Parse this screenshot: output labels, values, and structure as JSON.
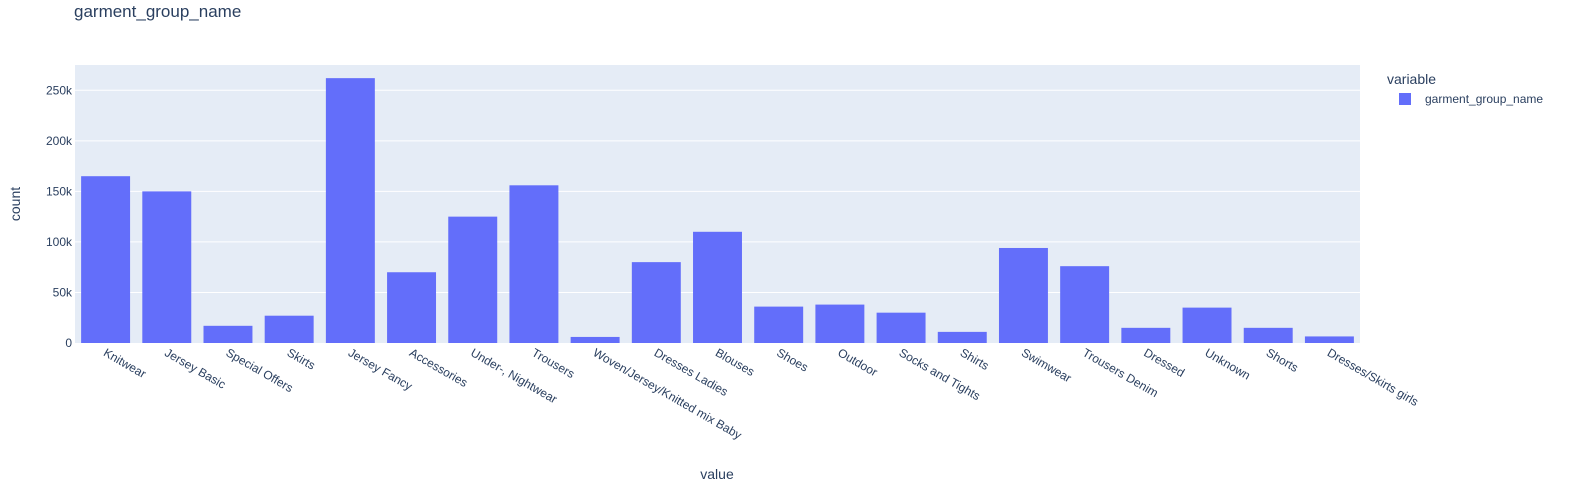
{
  "chart_data": {
    "type": "bar",
    "title": "garment_group_name",
    "xlabel": "value",
    "ylabel": "count",
    "ylim": [
      0,
      275000
    ],
    "yticks": [
      0,
      50000,
      100000,
      150000,
      200000,
      250000
    ],
    "ytick_labels": [
      "0",
      "50k",
      "100k",
      "150k",
      "200k",
      "250k"
    ],
    "grid": true,
    "legend": {
      "title": "variable",
      "placement": "right",
      "entries": [
        "garment_group_name"
      ]
    },
    "categories": [
      "Knitwear",
      "Jersey Basic",
      "Special Offers",
      "Skirts",
      "Jersey Fancy",
      "Accessories",
      "Under-, Nightwear",
      "Trousers",
      "Woven/Jersey/Knitted mix Baby",
      "Dresses Ladies",
      "Blouses",
      "Shoes",
      "Outdoor",
      "Socks and Tights",
      "Shirts",
      "Swimwear",
      "Trousers Denim",
      "Dressed",
      "Unknown",
      "Shorts",
      "Dresses/Skirts girls"
    ],
    "series": [
      {
        "name": "garment_group_name",
        "color": "#636efa",
        "values": [
          165000,
          150000,
          17000,
          27000,
          262000,
          70000,
          125000,
          156000,
          6000,
          80000,
          110000,
          36000,
          38000,
          30000,
          11000,
          94000,
          76000,
          15000,
          35000,
          15000,
          6500
        ]
      }
    ]
  },
  "colors": {
    "plot_background": "#e5ecf6",
    "grid": "#ffffff",
    "bar": "#636efa",
    "text": "#2a3f5f"
  }
}
